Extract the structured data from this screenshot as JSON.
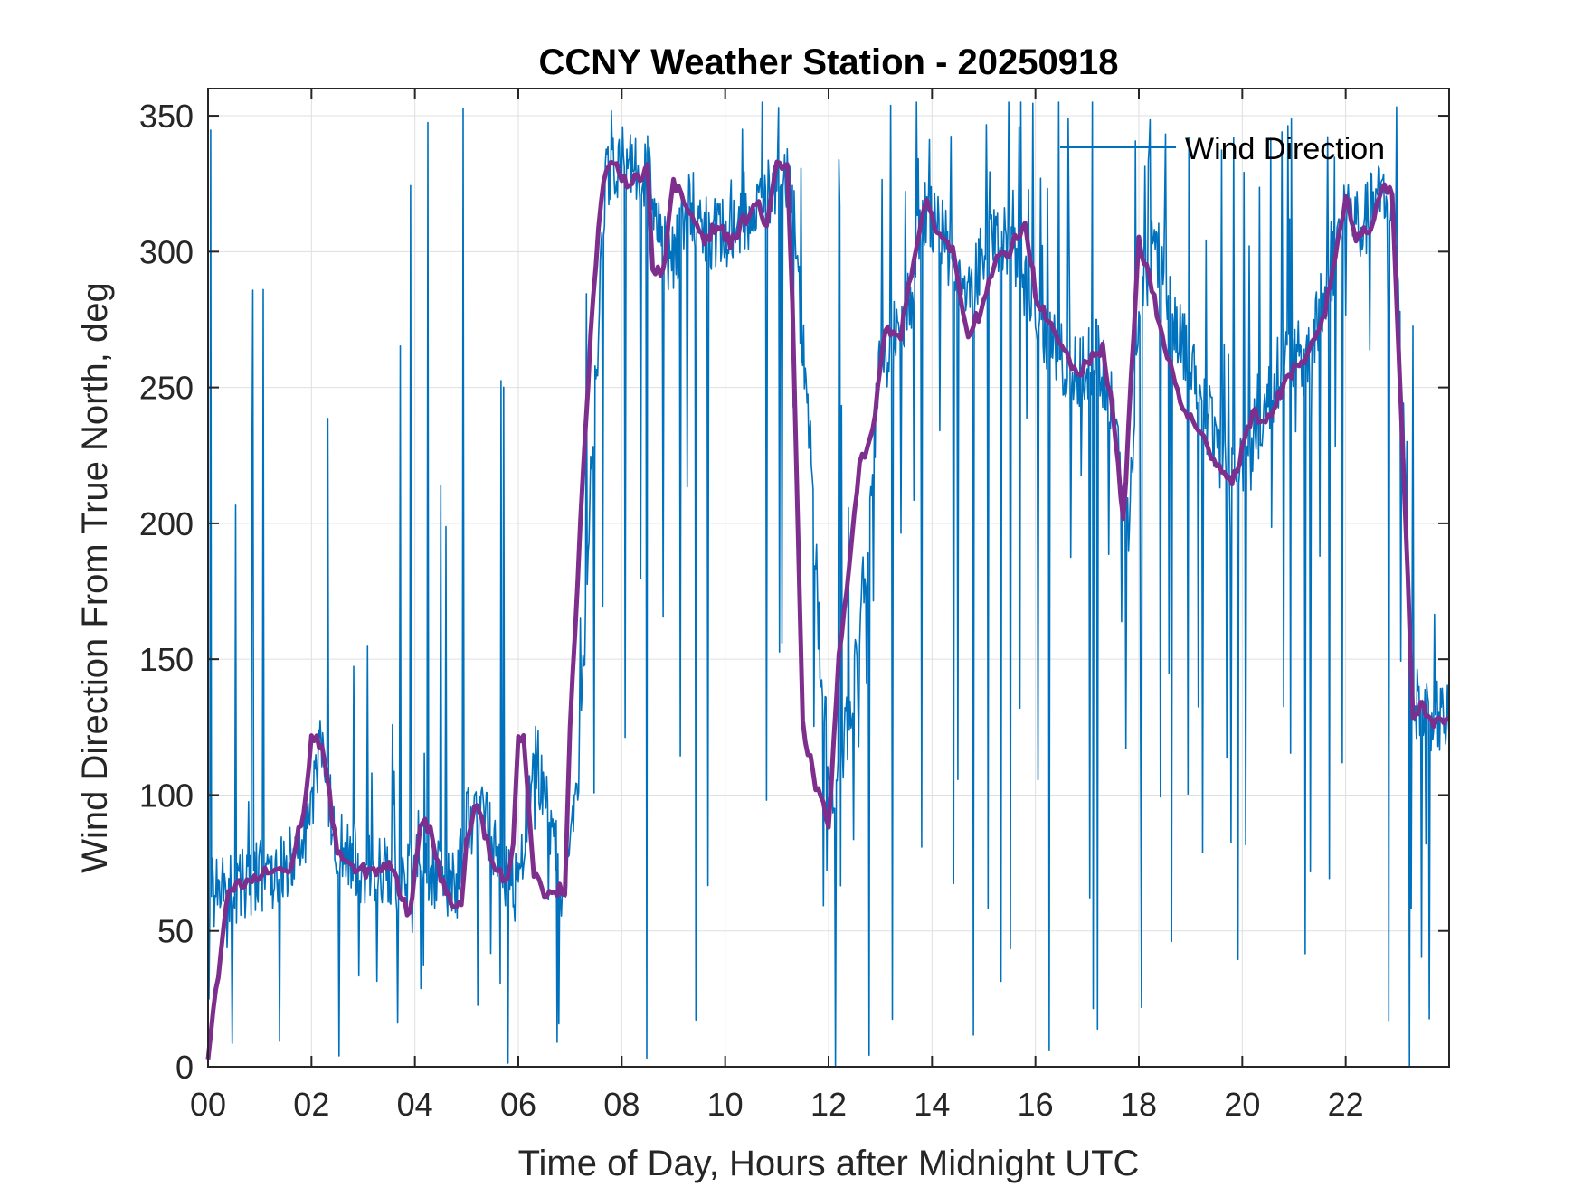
{
  "chart_data": {
    "type": "line",
    "title": "CCNY Weather Station - 20250918",
    "xlabel": "Time of Day, Hours after Midnight UTC",
    "ylabel": "Wind Direction From True North, deg",
    "xlim": [
      0,
      24
    ],
    "ylim": [
      0,
      360
    ],
    "x_ticks": [
      0,
      2,
      4,
      6,
      8,
      10,
      12,
      14,
      16,
      18,
      20,
      22
    ],
    "x_tick_labels": [
      "00",
      "02",
      "04",
      "06",
      "08",
      "10",
      "12",
      "14",
      "16",
      "18",
      "20",
      "22"
    ],
    "y_ticks": [
      0,
      50,
      100,
      150,
      200,
      250,
      300,
      350
    ],
    "y_tick_labels": [
      "0",
      "50",
      "100",
      "150",
      "200",
      "250",
      "300",
      "350"
    ],
    "grid": true,
    "legend": {
      "location": "top-right",
      "entries": [
        "Wind Direction"
      ]
    },
    "colors": {
      "raw": "#0072BD",
      "smooth": "#7E2F8E",
      "axis": "#262626",
      "grid": "#dfdfdf"
    },
    "series": [
      {
        "name": "Wind Direction",
        "style": "thin",
        "noise_amplitude": 14,
        "spike_rate": 0.15,
        "x": [
          0.0,
          0.5,
          1.0,
          1.5,
          1.9,
          2.2,
          2.5,
          3.0,
          3.5,
          3.8,
          4.0,
          4.4,
          4.8,
          5.0,
          5.3,
          5.8,
          6.0,
          6.3,
          6.8,
          6.9,
          7.2,
          7.4,
          7.7,
          8.0,
          8.5,
          8.8,
          9.0,
          9.3,
          9.6,
          9.9,
          10.3,
          10.6,
          10.9,
          11.1,
          11.3,
          11.6,
          11.9,
          12.1,
          12.5,
          12.8,
          13.0,
          13.5,
          13.9,
          14.2,
          14.4,
          14.7,
          15.0,
          15.5,
          15.9,
          16.2,
          16.5,
          16.8,
          17.2,
          17.5,
          17.8,
          18.0,
          18.3,
          18.6,
          19.0,
          19.3,
          19.6,
          20.0,
          20.4,
          20.8,
          21.2,
          21.5,
          21.8,
          22.0,
          22.3,
          22.6,
          22.8,
          23.0,
          23.3,
          23.6,
          23.9
        ],
        "y": [
          65,
          66,
          70,
          73,
          88,
          118,
          82,
          73,
          72,
          62,
          85,
          70,
          65,
          88,
          95,
          70,
          65,
          120,
          70,
          68,
          120,
          215,
          328,
          333,
          330,
          300,
          298,
          318,
          310,
          305,
          310,
          318,
          322,
          335,
          320,
          240,
          130,
          100,
          140,
          210,
          260,
          275,
          318,
          305,
          298,
          280,
          300,
          305,
          283,
          270,
          260,
          255,
          262,
          240,
          200,
          278,
          303,
          280,
          260,
          240,
          225,
          222,
          240,
          262,
          260,
          275,
          300,
          318,
          308,
          320,
          318,
          300,
          135,
          130,
          128
        ]
      },
      {
        "name": "",
        "style": "bold",
        "noise_amplitude": 2.5,
        "spike_rate": 0,
        "x": [
          0.0,
          0.4,
          0.8,
          1.0,
          1.3,
          1.6,
          1.9,
          2.0,
          2.2,
          2.5,
          2.8,
          3.2,
          3.5,
          3.7,
          3.9,
          4.1,
          4.3,
          4.6,
          4.9,
          5.0,
          5.2,
          5.5,
          5.8,
          5.9,
          6.0,
          6.1,
          6.3,
          6.5,
          6.9,
          7.0,
          7.2,
          7.4,
          7.6,
          7.8,
          8.0,
          8.5,
          8.6,
          8.8,
          9.0,
          9.3,
          9.6,
          9.9,
          10.1,
          10.3,
          10.6,
          10.8,
          11.0,
          11.2,
          11.3,
          11.5,
          11.8,
          12.0,
          12.2,
          12.6,
          12.9,
          13.1,
          13.4,
          13.6,
          13.9,
          14.1,
          14.4,
          14.7,
          15.0,
          15.2,
          15.5,
          15.8,
          16.0,
          16.2,
          16.5,
          16.8,
          17.0,
          17.3,
          17.5,
          17.7,
          18.0,
          18.2,
          18.5,
          18.8,
          19.2,
          19.5,
          19.8,
          20.2,
          20.5,
          20.9,
          21.2,
          21.6,
          22.0,
          22.2,
          22.5,
          22.7,
          22.9,
          23.1,
          23.3,
          23.5,
          23.7,
          24.0
        ],
        "y": [
          3,
          65,
          68,
          70,
          73,
          72,
          100,
          122,
          118,
          80,
          72,
          72,
          75,
          65,
          55,
          90,
          88,
          62,
          60,
          85,
          98,
          75,
          68,
          80,
          124,
          120,
          70,
          65,
          65,
          125,
          200,
          270,
          320,
          335,
          325,
          330,
          295,
          292,
          325,
          315,
          305,
          310,
          302,
          310,
          318,
          310,
          333,
          330,
          280,
          125,
          100,
          90,
          150,
          220,
          240,
          272,
          270,
          293,
          318,
          308,
          300,
          270,
          280,
          295,
          300,
          312,
          285,
          275,
          265,
          255,
          258,
          265,
          240,
          200,
          305,
          290,
          265,
          245,
          232,
          223,
          215,
          240,
          238,
          255,
          258,
          278,
          320,
          305,
          310,
          325,
          320,
          230,
          130,
          133,
          126,
          128
        ]
      }
    ]
  }
}
